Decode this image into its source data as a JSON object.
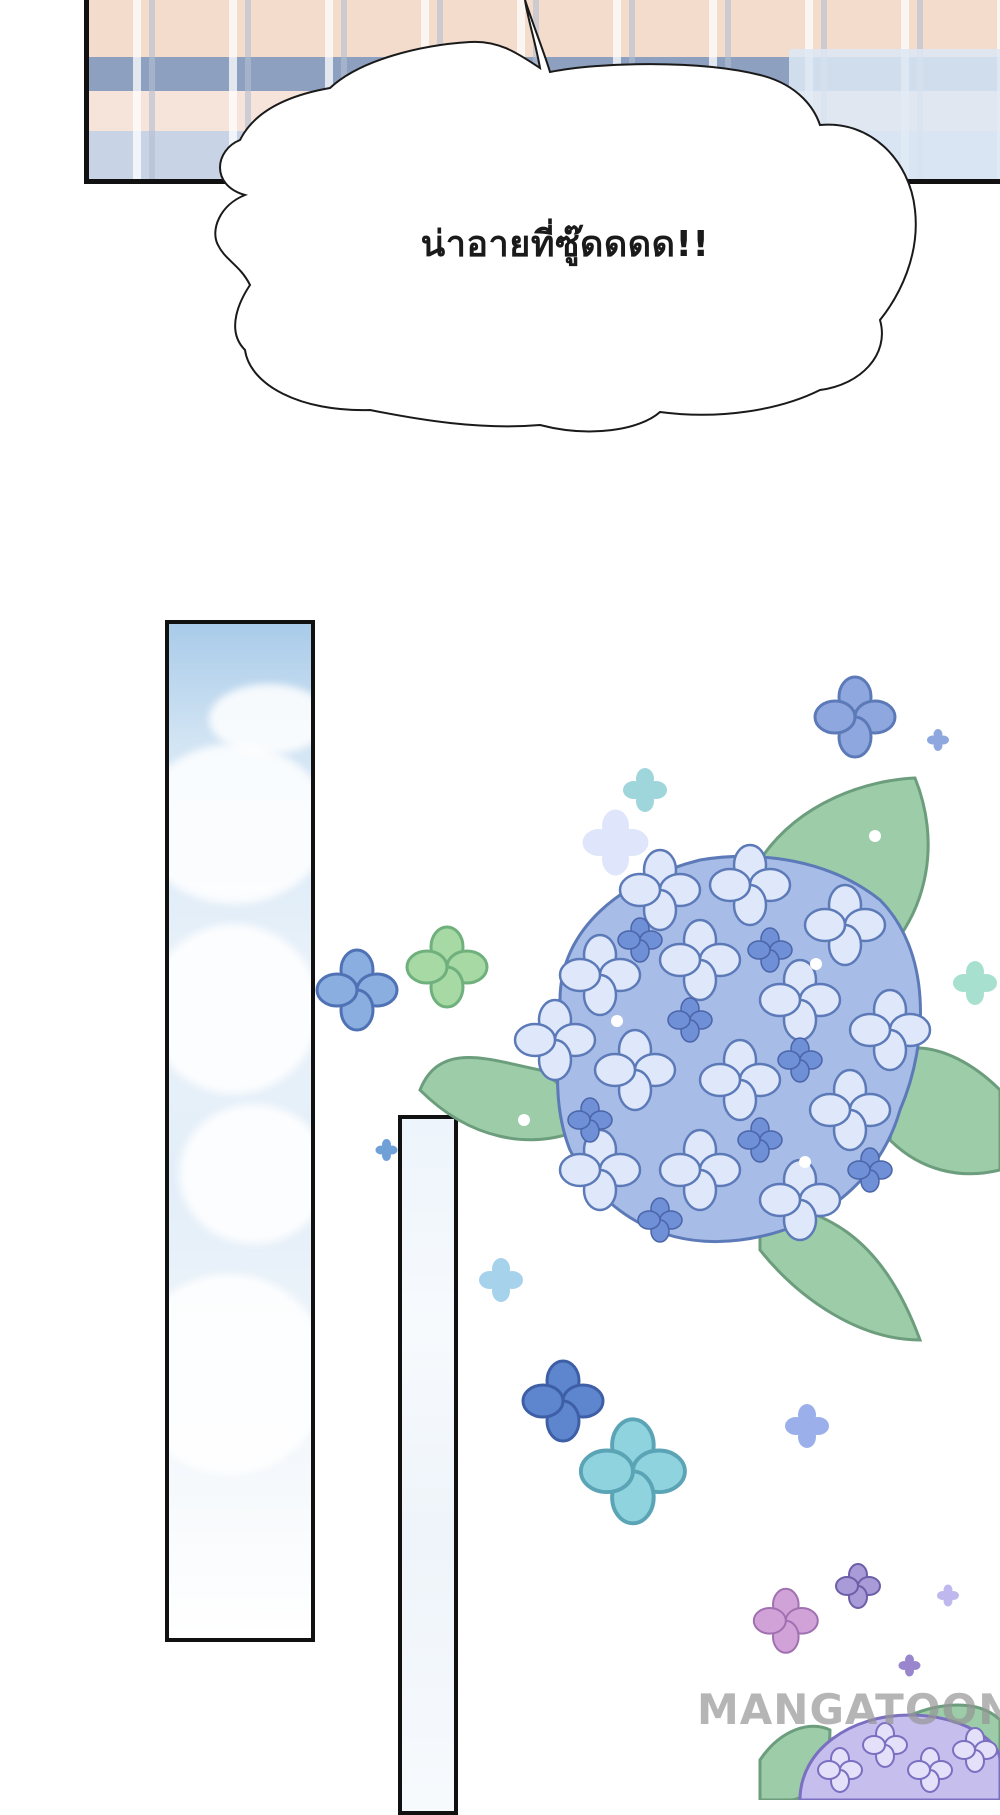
{
  "speech_bubble": {
    "text": "น่าอายที่ซู๊ดดดด!!"
  },
  "watermark": {
    "text": "MANGATOON"
  },
  "colors": {
    "panel_border": "#111111",
    "sky_blue": "#a9cbe9",
    "petal_blue": "#7fa3d8",
    "leaf_green": "#8cbf9a",
    "petal_teal": "#8fd0dc",
    "petal_purple": "#b79ad8"
  }
}
